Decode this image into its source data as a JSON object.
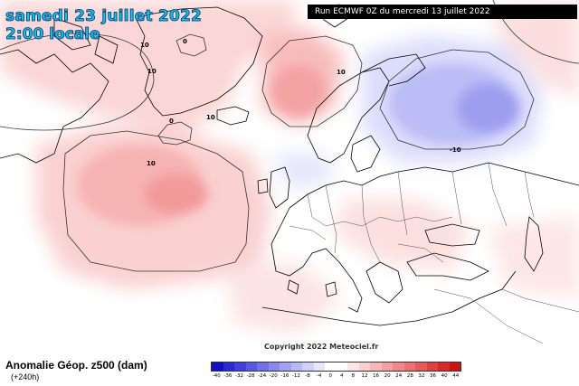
{
  "header": {
    "date": "samedi 23 juillet 2022",
    "time": "2:00 locale",
    "run": "Run ECMWF 0Z du mercredi 13 juillet 2022"
  },
  "footer": {
    "variable": "Anomalie Géop. z500 (dam)",
    "lead": "(+240h)",
    "copyright": "Copyright 2022 Meteociel.fr"
  },
  "contour_labels": [
    "0",
    "10",
    "10",
    "0",
    "10",
    "10",
    "10",
    "-10"
  ],
  "legend": {
    "ticks": [
      "-40",
      "-36",
      "-32",
      "-28",
      "-24",
      "-20",
      "-16",
      "-12",
      "-8",
      "-4",
      "0",
      "4",
      "8",
      "12",
      "16",
      "20",
      "24",
      "28",
      "32",
      "36",
      "40",
      "44"
    ],
    "colors": [
      "#1010c8",
      "#2828d8",
      "#4040e0",
      "#5858e6",
      "#7070ec",
      "#8888f0",
      "#a0a0f4",
      "#b8b8f8",
      "#d0d0fa",
      "#e6e6fc",
      "#ffffff",
      "#ffffff",
      "#fce6e6",
      "#fad0d0",
      "#f8b8b8",
      "#f4a0a0",
      "#f08888",
      "#ec7070",
      "#e85858",
      "#e04040",
      "#d82828",
      "#d01010"
    ]
  }
}
